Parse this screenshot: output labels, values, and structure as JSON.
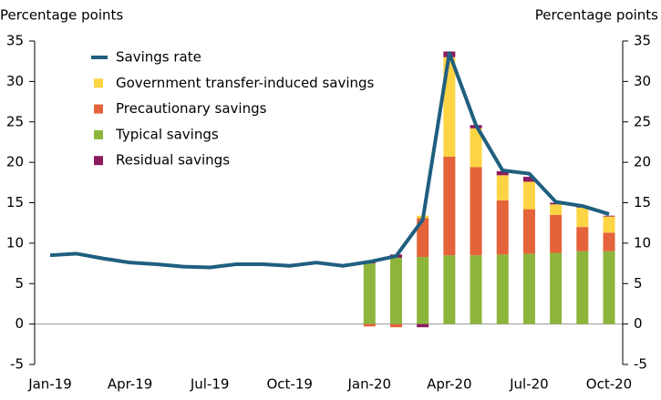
{
  "chart_data": {
    "type": "bar",
    "y_label": "Percentage points",
    "y2_label": "Percentage points",
    "categories": [
      "Jan-19",
      null,
      null,
      "Apr-19",
      null,
      null,
      "Jul-19",
      null,
      null,
      "Oct-19",
      null,
      null,
      "Jan-20",
      null,
      null,
      "Apr-20",
      null,
      null,
      "Jul-20",
      null,
      null,
      "Oct-20"
    ],
    "series": [
      {
        "name": "Savings rate",
        "type": "line",
        "color": "#1f5f7f",
        "values": [
          8.5,
          8.7,
          8.1,
          7.6,
          7.4,
          7.1,
          7.0,
          7.4,
          7.4,
          7.2,
          7.6,
          7.2,
          7.7,
          8.4,
          12.9,
          33.5,
          24.6,
          19.0,
          18.6,
          15.1,
          14.6,
          13.6
        ]
      },
      {
        "name": "Government transfer-induced savings",
        "type": "bar",
        "color": "#fdd444",
        "values": [
          null,
          null,
          null,
          null,
          null,
          null,
          null,
          null,
          null,
          null,
          null,
          null,
          0,
          0,
          0.3,
          12.3,
          4.8,
          3.1,
          3.4,
          1.3,
          2.4,
          2.0
        ]
      },
      {
        "name": "Precautionary savings",
        "type": "bar",
        "color": "#e4633a",
        "values": [
          null,
          null,
          null,
          null,
          null,
          null,
          null,
          null,
          null,
          null,
          null,
          null,
          -0.3,
          -0.4,
          4.8,
          12.2,
          10.9,
          6.7,
          5.5,
          4.7,
          3.0,
          2.3
        ]
      },
      {
        "name": "Typical savings",
        "type": "bar",
        "color": "#8db53c",
        "values": [
          null,
          null,
          null,
          null,
          null,
          null,
          null,
          null,
          null,
          null,
          null,
          null,
          7.5,
          8.2,
          8.3,
          8.5,
          8.5,
          8.6,
          8.7,
          8.8,
          9.0,
          9.0
        ]
      },
      {
        "name": "Residual savings",
        "type": "bar",
        "color": "#8b1a5e",
        "values": [
          null,
          null,
          null,
          null,
          null,
          null,
          null,
          null,
          null,
          null,
          null,
          null,
          0.3,
          0.4,
          -0.4,
          0.7,
          0.4,
          0.5,
          0.6,
          0.2,
          0.1,
          0.1
        ]
      }
    ],
    "ylim": [
      -5,
      35
    ],
    "yticks": [
      -5,
      0,
      5,
      10,
      15,
      20,
      25,
      30,
      35
    ],
    "y2lim": [
      -5,
      35
    ],
    "y2ticks": [
      -5,
      0,
      5,
      10,
      15,
      20,
      25,
      30,
      35
    ],
    "legend": "upper left"
  }
}
